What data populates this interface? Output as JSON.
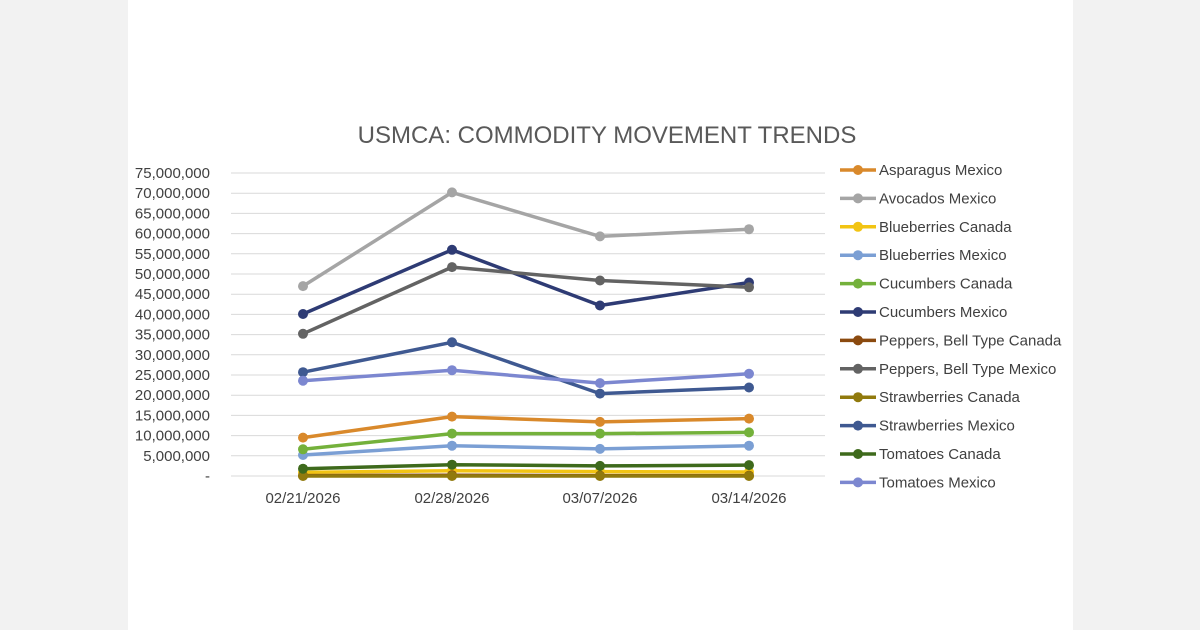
{
  "chart_data": {
    "type": "line",
    "title": "USMCA: COMMODITY MOVEMENT TRENDS",
    "xlabel": "",
    "ylabel": "",
    "categories": [
      "02/21/2026",
      "02/28/2026",
      "03/07/2026",
      "03/14/2026"
    ],
    "ylim": [
      0,
      75000000
    ],
    "y_ticks": [
      {
        "value": 0,
        "label": "-"
      },
      {
        "value": 5000000,
        "label": "5,000,000"
      },
      {
        "value": 10000000,
        "label": "10,000,000"
      },
      {
        "value": 15000000,
        "label": "15,000,000"
      },
      {
        "value": 20000000,
        "label": "20,000,000"
      },
      {
        "value": 25000000,
        "label": "25,000,000"
      },
      {
        "value": 30000000,
        "label": "30,000,000"
      },
      {
        "value": 35000000,
        "label": "35,000,000"
      },
      {
        "value": 40000000,
        "label": "40,000,000"
      },
      {
        "value": 45000000,
        "label": "45,000,000"
      },
      {
        "value": 50000000,
        "label": "50,000,000"
      },
      {
        "value": 55000000,
        "label": "55,000,000"
      },
      {
        "value": 60000000,
        "label": "60,000,000"
      },
      {
        "value": 65000000,
        "label": "65,000,000"
      },
      {
        "value": 70000000,
        "label": "70,000,000"
      },
      {
        "value": 75000000,
        "label": "75,000,000"
      }
    ],
    "grid": true,
    "legend_position": "right",
    "series": [
      {
        "name": "Asparagus Mexico",
        "color": "#d9892b",
        "values": [
          9500000,
          14700000,
          13400000,
          14200000
        ]
      },
      {
        "name": "Avocados Mexico",
        "color": "#a5a5a5",
        "values": [
          47000000,
          70200000,
          59300000,
          61100000
        ]
      },
      {
        "name": "Blueberries Canada",
        "color": "#f2c413",
        "values": [
          900000,
          1300000,
          1100000,
          1000000
        ]
      },
      {
        "name": "Blueberries Mexico",
        "color": "#7b9fd4",
        "values": [
          5200000,
          7500000,
          6700000,
          7500000
        ]
      },
      {
        "name": "Cucumbers Canada",
        "color": "#74b13b",
        "values": [
          6600000,
          10500000,
          10500000,
          10800000
        ]
      },
      {
        "name": "Cucumbers Mexico",
        "color": "#2e3b74",
        "values": [
          40100000,
          56000000,
          42200000,
          47900000
        ]
      },
      {
        "name": "Peppers, Bell Type Canada",
        "color": "#8b4a0f",
        "values": [
          100000,
          200000,
          100000,
          100000
        ]
      },
      {
        "name": "Peppers, Bell Type Mexico",
        "color": "#636363",
        "values": [
          35200000,
          51700000,
          48400000,
          46700000
        ]
      },
      {
        "name": "Strawberries Canada",
        "color": "#917a0d",
        "values": [
          0,
          0,
          0,
          0
        ]
      },
      {
        "name": "Strawberries Mexico",
        "color": "#3f5991",
        "values": [
          25700000,
          33100000,
          20400000,
          21900000
        ]
      },
      {
        "name": "Tomatoes Canada",
        "color": "#3e6a1c",
        "values": [
          1800000,
          2800000,
          2500000,
          2700000
        ]
      },
      {
        "name": "Tomatoes Mexico",
        "color": "#7c87d0",
        "values": [
          23600000,
          26200000,
          23000000,
          25300000
        ]
      }
    ]
  }
}
